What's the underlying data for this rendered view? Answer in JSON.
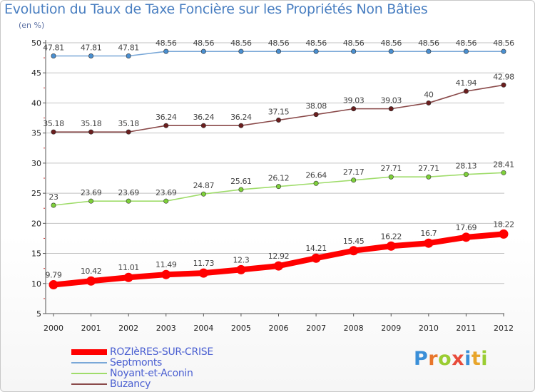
{
  "title": "Evolution du Taux de Taxe Foncière sur les Propriétés Non Bâties",
  "unit_label": "(en %)",
  "logo_text": "Proxiti",
  "colors": {
    "grid": "#c2c2c2",
    "axis": "#555555",
    "tick_text": "#222222",
    "label_text": "#444444"
  },
  "chart_data": {
    "type": "line",
    "title": "Evolution du Taux de Taxe Foncière sur les Propriétés Non Bâties",
    "ylabel": "(en %)",
    "xlabel": "",
    "x": [
      "2000",
      "2001",
      "2002",
      "2003",
      "2004",
      "2005",
      "2006",
      "2007",
      "2008",
      "2009",
      "2010",
      "2011",
      "2012"
    ],
    "ylim": [
      5,
      50
    ],
    "yticks": [
      5,
      10,
      15,
      20,
      25,
      30,
      35,
      40,
      45,
      50
    ],
    "grid": true,
    "legend_position": "bottom-left",
    "series": [
      {
        "name": "ROZIèRES-SUR-CRISE",
        "color": "#ff0000",
        "marker_color": "#ff0000",
        "width": "thick",
        "values": [
          9.79,
          10.42,
          11.01,
          11.49,
          11.73,
          12.3,
          12.92,
          14.21,
          15.45,
          16.22,
          16.7,
          17.69,
          18.22
        ],
        "labels": [
          "9.79",
          "10.42",
          "11.01",
          "11.49",
          "11.73",
          "12.3",
          "12.92",
          "14.21",
          "15.45",
          "16.22",
          "16.7",
          "17.69",
          "18.22"
        ]
      },
      {
        "name": "Septmonts",
        "color": "#7aa8d8",
        "marker_color": "#4a8fd0",
        "width": "thin",
        "values": [
          47.81,
          47.81,
          47.81,
          48.56,
          48.56,
          48.56,
          48.56,
          48.56,
          48.56,
          48.56,
          48.56,
          48.56,
          48.56
        ],
        "labels": [
          "47.81",
          "47.81",
          "47.81",
          "48.56",
          "48.56",
          "48.56",
          "48.56",
          "48.56",
          "48.56",
          "48.56",
          "48.56",
          "48.56",
          "48.56"
        ]
      },
      {
        "name": "Noyant-et-Aconin",
        "color": "#9fdc6a",
        "marker_color": "#7ed03a",
        "width": "thin",
        "values": [
          23,
          23.69,
          23.69,
          23.69,
          24.87,
          25.61,
          26.12,
          26.64,
          27.17,
          27.71,
          27.71,
          28.13,
          28.41
        ],
        "labels": [
          "23",
          "23.69",
          "23.69",
          "23.69",
          "24.87",
          "25.61",
          "26.12",
          "26.64",
          "27.17",
          "27.71",
          "27.71",
          "28.13",
          "28.41"
        ]
      },
      {
        "name": "Buzancy",
        "color": "#8a4a4a",
        "marker_color": "#6b1e1e",
        "width": "thin",
        "values": [
          35.18,
          35.18,
          35.18,
          36.24,
          36.24,
          36.24,
          37.15,
          38.08,
          39.03,
          39.03,
          40,
          41.94,
          42.98
        ],
        "labels": [
          "35.18",
          "35.18",
          "35.18",
          "36.24",
          "36.24",
          "36.24",
          "37.15",
          "38.08",
          "39.03",
          "39.03",
          "40",
          "41.94",
          "42.98"
        ]
      }
    ]
  }
}
